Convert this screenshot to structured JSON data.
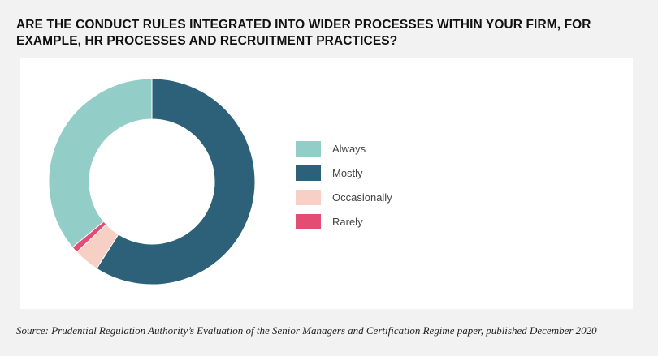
{
  "title": "ARE THE CONDUCT RULES INTEGRATED INTO WIDER PROCESSES WITHIN YOUR FIRM, FOR EXAMPLE, HR PROCESSES AND RECRUITMENT PRACTICES?",
  "source": "Source: Prudential Regulation Authority’s Evaluation of the Senior Managers and Certification Regime paper, published December 2020",
  "chart_data": {
    "type": "pie",
    "donut": true,
    "categories": [
      "Always",
      "Mostly",
      "Occasionally",
      "Rarely"
    ],
    "values": [
      36,
      59,
      4,
      1
    ],
    "colors": [
      "#92cdc8",
      "#2d6179",
      "#f7cfc5",
      "#e34c73"
    ],
    "start_category": "Mostly",
    "legend_position": "right"
  }
}
